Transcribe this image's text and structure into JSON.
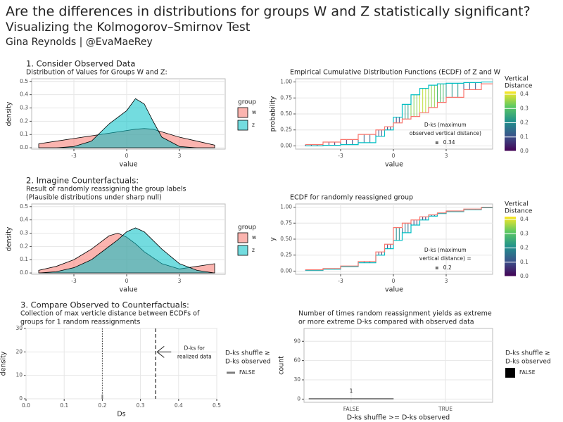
{
  "title": "Are the differences in distributions for groups W and Z statistically significant?",
  "subtitle": "Visualizing the Kolmogorov–Smirnov Test",
  "author": "Gina Reynolds | @EvaMaeRey",
  "chart_data": [
    {
      "type": "area",
      "heading": "1. Consider Observed Data",
      "title": [
        "Distribution of Values for Groups W and Z:"
      ],
      "x": [
        -5,
        -4,
        -3,
        -2,
        -1,
        0,
        0.5,
        1,
        1.5,
        2,
        3,
        4,
        5
      ],
      "series": [
        {
          "name": "w",
          "color": "#f8766d",
          "values": [
            0.03,
            0.05,
            0.07,
            0.09,
            0.11,
            0.13,
            0.14,
            0.145,
            0.14,
            0.12,
            0.08,
            0.05,
            0.02
          ]
        },
        {
          "name": "z",
          "color": "#00bfc4",
          "values": [
            0,
            0,
            0.01,
            0.05,
            0.18,
            0.28,
            0.37,
            0.33,
            0.2,
            0.08,
            0.01,
            0,
            0
          ]
        }
      ],
      "xlim": [
        -5.4,
        5.6
      ],
      "ylim": [
        -0.01,
        0.52
      ],
      "xticks": [
        -3,
        0,
        3
      ],
      "yticks": [
        {
          "value": 0,
          "label": "0.0"
        },
        0.1,
        0.2,
        0.3,
        0.4,
        0.5
      ],
      "xlabel": "value",
      "ylabel": "density",
      "legend_title": [
        "group"
      ],
      "grid": true
    },
    {
      "type": "ecdf",
      "title": [
        "Empirical Cumulative Distribution Functions (ECDF) of Z and W"
      ],
      "x": [
        -5,
        -4,
        -3,
        -2,
        -1,
        -0.5,
        0,
        0.5,
        1,
        1.5,
        2,
        2.5,
        3,
        4,
        5
      ],
      "series": [
        {
          "color": "#00bfc4",
          "values": [
            0,
            0.01,
            0.02,
            0.05,
            0.15,
            0.25,
            0.45,
            0.65,
            0.8,
            0.9,
            0.95,
            0.97,
            0.98,
            0.99,
            1
          ]
        },
        {
          "color": "#f8766d",
          "values": [
            0.02,
            0.06,
            0.1,
            0.18,
            0.25,
            0.3,
            0.36,
            0.42,
            0.46,
            0.52,
            0.6,
            0.68,
            0.76,
            0.88,
            0.97
          ]
        }
      ],
      "xlim": [
        -5.56,
        5.64
      ],
      "ylim": [
        -0.05,
        1.05
      ],
      "xticks": [
        -3,
        0,
        3
      ],
      "yticks": [
        {
          "value": 0,
          "label": "0.00"
        },
        {
          "value": 0.25,
          "label": "0.25"
        },
        {
          "value": 0.5,
          "label": "0.50"
        },
        {
          "value": 0.75,
          "label": "0.75"
        },
        {
          "value": 1,
          "label": "1.00"
        }
      ],
      "xlabel": "value",
      "ylabel": "probability",
      "legend_title": [
        "Vertical",
        "Distance"
      ],
      "colorbar_lim": [
        0,
        0.42
      ],
      "colorbar_ticks": [
        {
          "value": 0,
          "label": "0.0"
        },
        0.1,
        0.2,
        0.3,
        0.4
      ],
      "annotation": [
        "D-ks (maximum",
        "observed vertical distance)"
      ],
      "dks": 0.34,
      "grid": true
    },
    {
      "type": "area",
      "heading": "2. Imagine Counterfactuals:",
      "title": [
        "Result of randomly reassigning the group labels",
        "(Plausible distributions under sharp null)"
      ],
      "x": [
        -5,
        -4,
        -3,
        -2,
        -1,
        -0.5,
        0,
        0.5,
        1,
        2,
        3,
        4,
        5
      ],
      "series": [
        {
          "name": "w",
          "color": "#f8766d",
          "values": [
            0.02,
            0.05,
            0.1,
            0.18,
            0.28,
            0.3,
            0.27,
            0.22,
            0.16,
            0.07,
            0.03,
            0.05,
            0.07
          ]
        },
        {
          "name": "z",
          "color": "#00bfc4",
          "values": [
            0,
            0.01,
            0.04,
            0.1,
            0.2,
            0.25,
            0.31,
            0.34,
            0.31,
            0.18,
            0.07,
            0.02,
            0
          ]
        }
      ],
      "xlim": [
        -5.4,
        5.6
      ],
      "ylim": [
        -0.01,
        0.52
      ],
      "xticks": [
        -3,
        0,
        3
      ],
      "yticks": [
        {
          "value": 0,
          "label": "0.0"
        },
        0.1,
        0.2,
        0.3,
        0.4,
        0.5
      ],
      "xlabel": "value",
      "ylabel": "density",
      "legend_title": [
        "group"
      ],
      "grid": true
    },
    {
      "type": "ecdf",
      "title": [
        "ECDF for randomly reassigned group"
      ],
      "x": [
        -5,
        -4,
        -3,
        -2,
        -1,
        -0.5,
        0,
        0.5,
        1,
        1.5,
        2,
        2.5,
        3,
        4,
        5
      ],
      "series": [
        {
          "color": "#00bfc4",
          "values": [
            0.01,
            0.03,
            0.07,
            0.13,
            0.25,
            0.35,
            0.48,
            0.6,
            0.72,
            0.8,
            0.86,
            0.9,
            0.93,
            0.96,
            0.99
          ]
        },
        {
          "color": "#f8766d",
          "values": [
            0.02,
            0.04,
            0.08,
            0.15,
            0.3,
            0.42,
            0.68,
            0.75,
            0.8,
            0.85,
            0.88,
            0.91,
            0.94,
            0.97,
            1
          ]
        }
      ],
      "xlim": [
        -5.56,
        5.64
      ],
      "ylim": [
        -0.05,
        1.05
      ],
      "xticks": [
        -3,
        0,
        3
      ],
      "yticks": [
        {
          "value": 0,
          "label": "0.00"
        },
        {
          "value": 0.25,
          "label": "0.25"
        },
        {
          "value": 0.5,
          "label": "0.50"
        },
        {
          "value": 0.75,
          "label": "0.75"
        },
        {
          "value": 1,
          "label": "1.00"
        }
      ],
      "xlabel": "value",
      "ylabel": "y",
      "legend_title": [
        "Vertical",
        "Distance"
      ],
      "colorbar_lim": [
        0,
        0.42
      ],
      "colorbar_ticks": [
        {
          "value": 0,
          "label": "0.0"
        },
        0.1,
        0.2,
        0.3,
        0.4
      ],
      "annotation": [
        "D-ks (maximum",
        "vertical distance) ="
      ],
      "dks": 0.2,
      "grid": true
    },
    {
      "type": "line",
      "heading": "3. Compare Observed to Counterfactuals:",
      "title": [
        "Collection of max verticle distance between ECDFs of",
        "groups for 1 random reassignments"
      ],
      "series": [
        {
          "name": "FALSE",
          "color": "#7f7f7f",
          "values": [
            0.2
          ]
        }
      ],
      "observed": 0.34,
      "annotation": [
        "D-ks for",
        "realized data"
      ],
      "xlim": [
        0,
        0.5
      ],
      "ylim": [
        0,
        30
      ],
      "xticks": [
        {
          "value": 0,
          "label": "0.0"
        },
        0.1,
        0.2,
        0.3,
        0.4,
        0.5
      ],
      "yticks": [
        0,
        10,
        20,
        30
      ],
      "xlabel": "Ds",
      "ylabel": "density",
      "legend_title": [
        "D-ks shuffle ≥",
        " D-ks observed"
      ],
      "grid": true
    },
    {
      "type": "bar",
      "title": [
        "Number of times random reassignment yields as extreme",
        "or more extreme D-ks compared with observed data"
      ],
      "categories": [
        "FALSE",
        "TRUE"
      ],
      "series": [
        {
          "name": "FALSE",
          "color": "#000000",
          "values": [
            1,
            0
          ]
        }
      ],
      "ylim": [
        -5,
        110
      ],
      "yticks": [
        0,
        30,
        60,
        90
      ],
      "xlabel": "D-ks shuffle >= D-ks observed",
      "ylabel": "count",
      "legend_title": [
        "D-ks shuffle ≥",
        " D-ks observed"
      ],
      "grid": true
    }
  ]
}
